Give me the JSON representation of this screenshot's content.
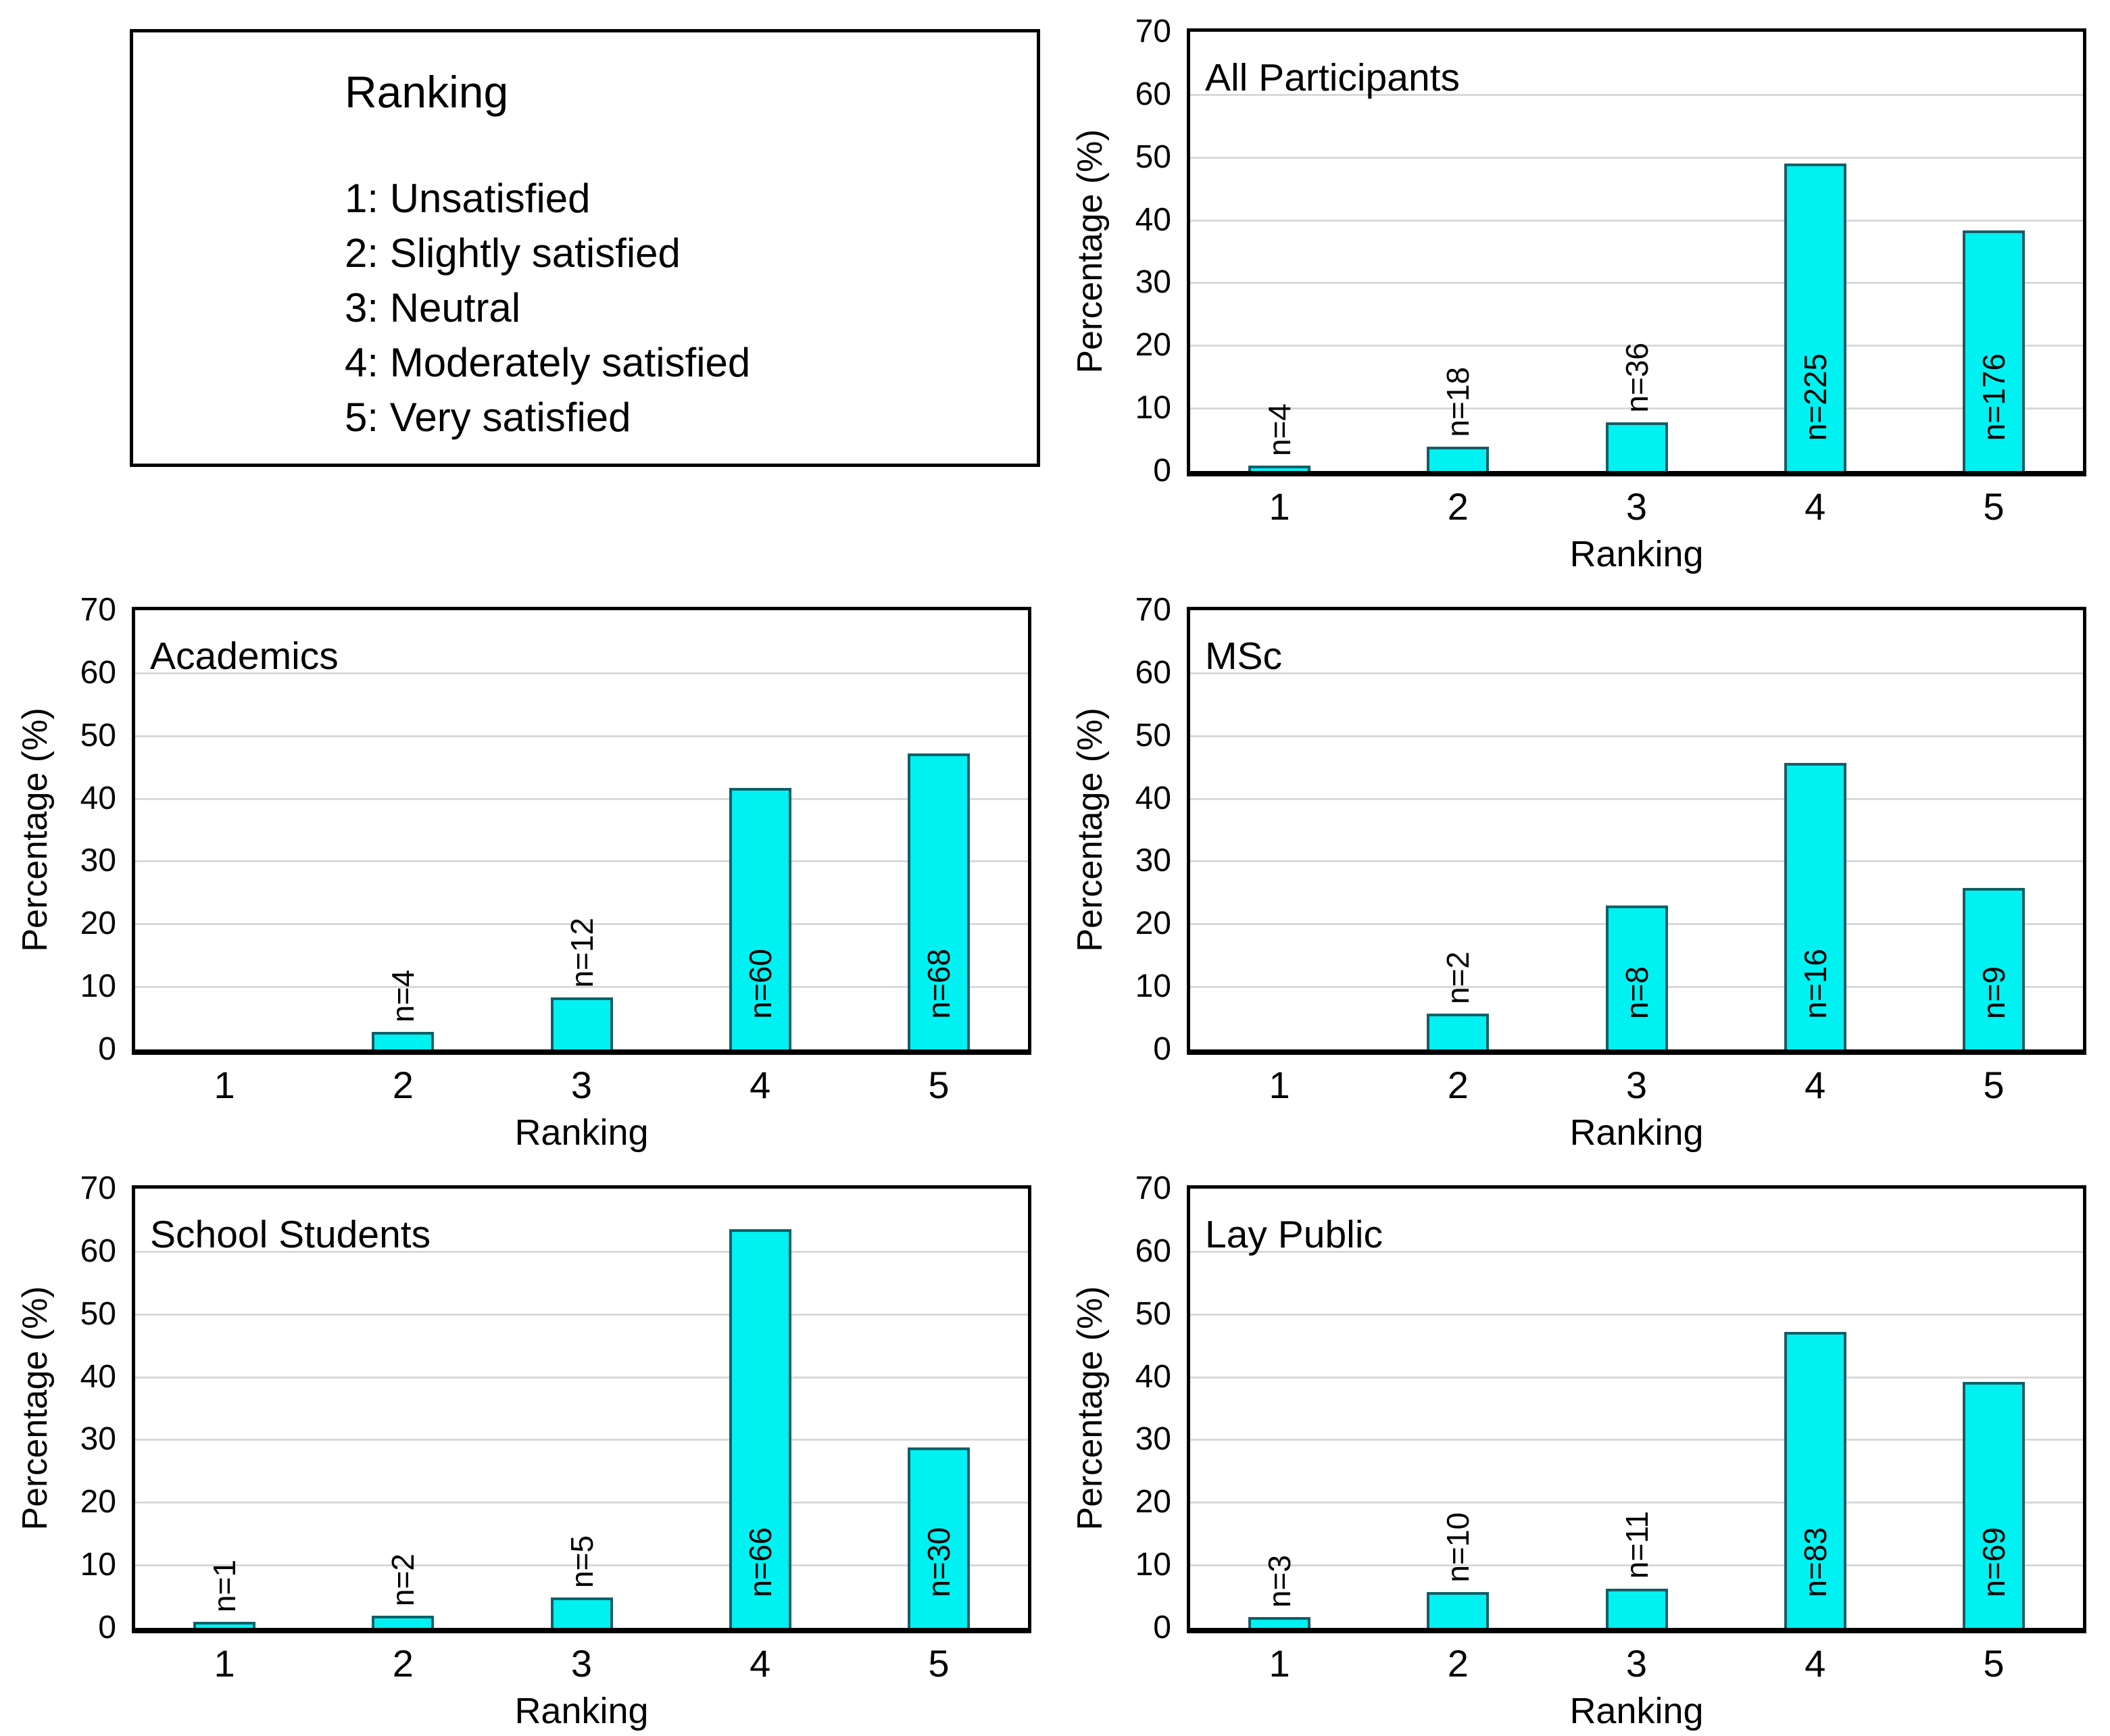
{
  "figure": {
    "bar_fill": "#00f1f1",
    "bar_border": "#155e66",
    "grid_color": "#d9d9d9",
    "frame_color": "#000000"
  },
  "legend_box": {
    "title": "Ranking",
    "items": [
      "1: Unsatisfied",
      "2: Slightly satisfied",
      "3: Neutral",
      "4: Moderately satisfied",
      "5: Very satisfied"
    ]
  },
  "chart_data": [
    {
      "type": "bar",
      "title": "All Participants",
      "categories": [
        "1",
        "2",
        "3",
        "4",
        "5"
      ],
      "values": [
        0.9,
        3.9,
        7.8,
        49.0,
        38.3
      ],
      "counts": [
        4,
        18,
        36,
        225,
        176
      ],
      "bar_labels": [
        "n=4",
        "n=18",
        "n=36",
        "n=225",
        "n=176"
      ],
      "xlabel": "Ranking",
      "ylabel": "Percentage (%)",
      "ylim": [
        0,
        70
      ],
      "yticks": [
        0,
        10,
        20,
        30,
        40,
        50,
        60,
        70
      ],
      "grid": true,
      "legend_position": "none"
    },
    {
      "type": "bar",
      "title": "Academics",
      "categories": [
        "1",
        "2",
        "3",
        "4",
        "5"
      ],
      "values": [
        0,
        2.8,
        8.3,
        41.7,
        47.2
      ],
      "counts": [
        0,
        4,
        12,
        60,
        68
      ],
      "bar_labels": [
        "",
        "n=4",
        "n=12",
        "n=60",
        "n=68"
      ],
      "xlabel": "Ranking",
      "ylabel": "Percentage (%)",
      "ylim": [
        0,
        70
      ],
      "yticks": [
        0,
        10,
        20,
        30,
        40,
        50,
        60,
        70
      ],
      "grid": true,
      "legend_position": "none"
    },
    {
      "type": "bar",
      "title": "MSc",
      "categories": [
        "1",
        "2",
        "3",
        "4",
        "5"
      ],
      "values": [
        0,
        5.7,
        22.9,
        45.7,
        25.7
      ],
      "counts": [
        0,
        2,
        8,
        16,
        9
      ],
      "bar_labels": [
        "",
        "n=2",
        "n=8",
        "n=16",
        "n=9"
      ],
      "xlabel": "Ranking",
      "ylabel": "Percentage (%)",
      "ylim": [
        0,
        70
      ],
      "yticks": [
        0,
        10,
        20,
        30,
        40,
        50,
        60,
        70
      ],
      "grid": true,
      "legend_position": "none"
    },
    {
      "type": "bar",
      "title": "School Students",
      "categories": [
        "1",
        "2",
        "3",
        "4",
        "5"
      ],
      "values": [
        1.0,
        1.9,
        4.8,
        63.5,
        28.8
      ],
      "counts": [
        1,
        2,
        5,
        66,
        30
      ],
      "bar_labels": [
        "n=1",
        "n=2",
        "n=5",
        "n=66",
        "n=30"
      ],
      "xlabel": "Ranking",
      "ylabel": "Percentage (%)",
      "ylim": [
        0,
        70
      ],
      "yticks": [
        0,
        10,
        20,
        30,
        40,
        50,
        60,
        70
      ],
      "grid": true,
      "legend_position": "none"
    },
    {
      "type": "bar",
      "title": "Lay Public",
      "categories": [
        "1",
        "2",
        "3",
        "4",
        "5"
      ],
      "values": [
        1.7,
        5.7,
        6.3,
        47.2,
        39.2
      ],
      "counts": [
        3,
        10,
        11,
        83,
        69
      ],
      "bar_labels": [
        "n=3",
        "n=10",
        "n=11",
        "n=83",
        "n=69"
      ],
      "xlabel": "Ranking",
      "ylabel": "Percentage (%)",
      "ylim": [
        0,
        70
      ],
      "yticks": [
        0,
        10,
        20,
        30,
        40,
        50,
        60,
        70
      ],
      "grid": true,
      "legend_position": "none"
    }
  ]
}
